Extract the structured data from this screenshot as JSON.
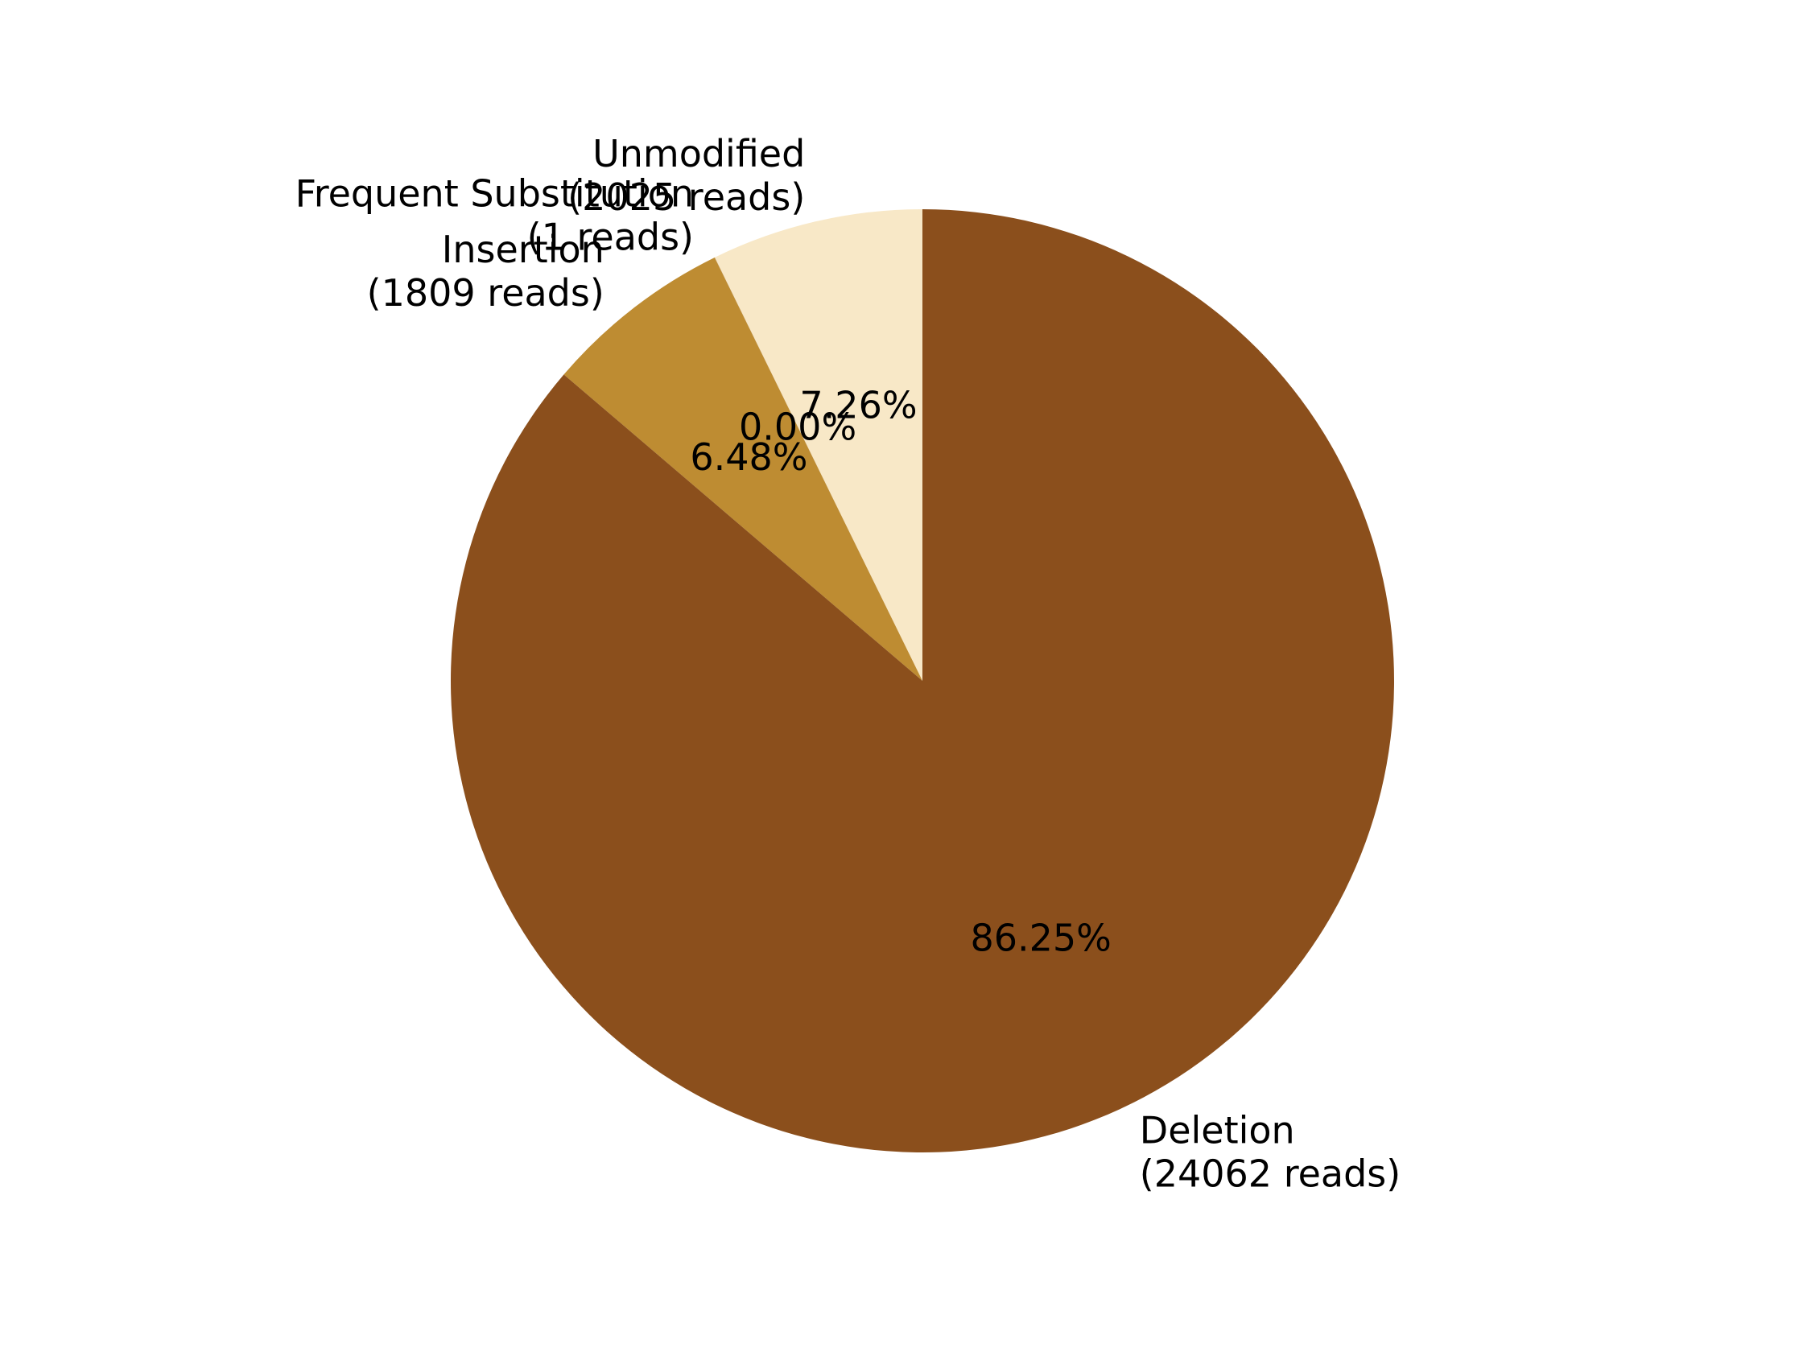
{
  "chart_data": {
    "type": "pie",
    "title": "",
    "start_angle_deg": 90,
    "direction": "counterclockwise",
    "order": [
      "Unmodified",
      "Frequent Substitution",
      "Insertion",
      "Deletion"
    ],
    "slices": [
      {
        "category": "Unmodified",
        "reads": 2025,
        "label_line1": "Unmodified",
        "label_line2": "(2025 reads)",
        "percent": 7.26,
        "percent_label": "7.26%",
        "color": "#f8e8c7"
      },
      {
        "category": "Frequent Substitution",
        "reads": 1,
        "label_line1": "Frequent Substitution",
        "label_line2": "(1 reads)",
        "percent": 0.0,
        "percent_label": "0.00%",
        "color": "#8b4f1c"
      },
      {
        "category": "Insertion",
        "reads": 1809,
        "label_line1": "Insertion",
        "label_line2": "(1809 reads)",
        "percent": 6.48,
        "percent_label": "6.48%",
        "color": "#be8c32"
      },
      {
        "category": "Deletion",
        "reads": 24062,
        "label_line1": "Deletion",
        "label_line2": "(24062 reads)",
        "percent": 86.25,
        "percent_label": "86.25%",
        "color": "#8b4f1c"
      }
    ]
  }
}
